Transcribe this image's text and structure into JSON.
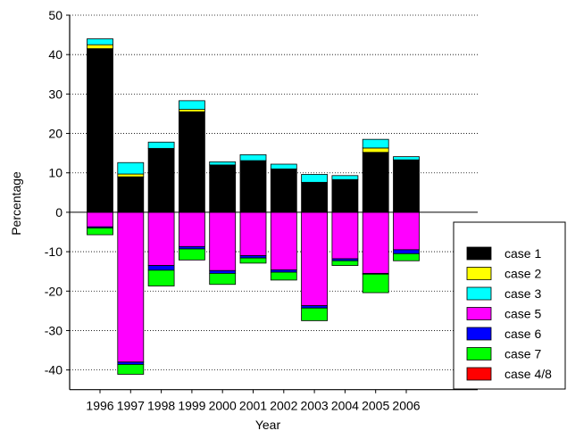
{
  "chart_data": {
    "type": "bar",
    "stacked": true,
    "title": "",
    "xlabel": "Year",
    "ylabel": "Percentage",
    "ylim": [
      -45,
      50
    ],
    "yticks": [
      -40,
      -30,
      -20,
      -10,
      0,
      10,
      20,
      30,
      40,
      50
    ],
    "grid": true,
    "legend_position": "bottom-right",
    "categories": [
      "1996",
      "1997",
      "1998",
      "1999",
      "2000",
      "2001",
      "2002",
      "2003",
      "2004",
      "2005",
      "2006"
    ],
    "series": [
      {
        "name": "case 1",
        "color": "#000000",
        "values": [
          41.5,
          9.0,
          16.2,
          25.5,
          12.0,
          13.1,
          11.0,
          7.6,
          8.3,
          15.2,
          13.3
        ]
      },
      {
        "name": "case 2",
        "color": "#ffff00",
        "values": [
          1.0,
          0.7,
          0.0,
          0.6,
          0.0,
          0.0,
          0.0,
          0.0,
          0.0,
          1.1,
          0.0
        ]
      },
      {
        "name": "case 3",
        "color": "#00ffff",
        "values": [
          1.5,
          2.9,
          1.6,
          2.2,
          0.8,
          1.5,
          1.2,
          2.0,
          1.0,
          2.2,
          0.8
        ]
      },
      {
        "name": "case 5",
        "color": "#ff00ff",
        "values": [
          -3.7,
          -38.0,
          -13.5,
          -8.7,
          -14.8,
          -11.0,
          -14.6,
          -23.7,
          -11.8,
          -15.5,
          -9.5
        ]
      },
      {
        "name": "case 6",
        "color": "#0000ff",
        "values": [
          -0.3,
          -0.6,
          -1.2,
          -0.6,
          -0.7,
          -0.6,
          -0.6,
          -0.6,
          -0.5,
          -0.2,
          -1.0
        ]
      },
      {
        "name": "case 7",
        "color": "#00ff00",
        "values": [
          -1.7,
          -2.5,
          -4.0,
          -2.8,
          -2.8,
          -1.3,
          -2.0,
          -3.2,
          -1.2,
          -4.7,
          -1.8
        ]
      },
      {
        "name": "case 4/8",
        "color": "#ff0000",
        "values": [
          0,
          0,
          0,
          0,
          0,
          0,
          0,
          0,
          0,
          0,
          0
        ]
      }
    ]
  }
}
